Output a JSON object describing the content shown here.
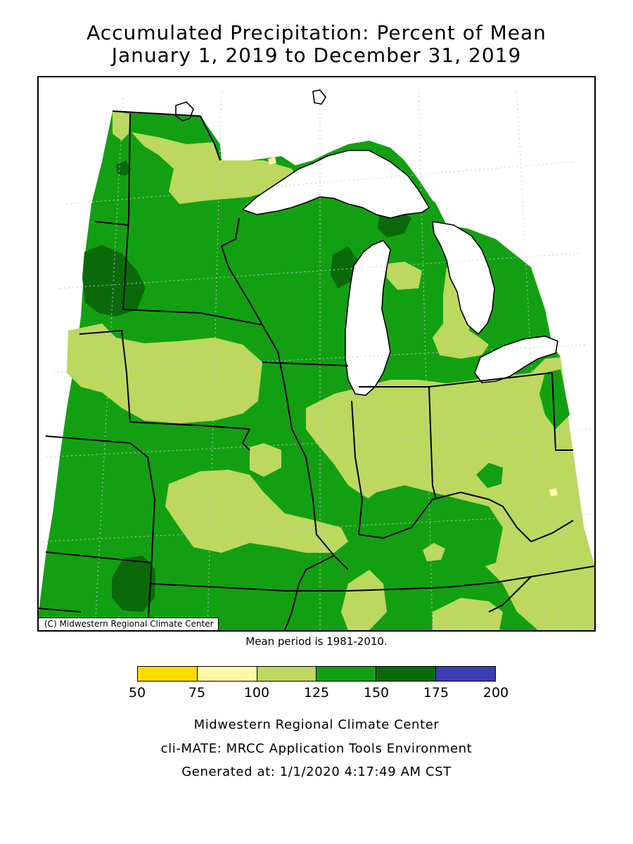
{
  "title": {
    "line1": "Accumulated Precipitation: Percent of Mean",
    "line2": "January 1, 2019 to December 31, 2019"
  },
  "map": {
    "copyright": "(C) Midwestern Regional Climate Center",
    "colors": {
      "c100_125": "#bcd85f",
      "c125_150": "#12a012",
      "c150_175": "#0a6a0a",
      "c75_100": "#fff7a6",
      "water": "#ffffff",
      "border": "#000000",
      "grid": "#c8c8c8"
    }
  },
  "mean_period": "Mean period is 1981-2010.",
  "legend": {
    "colors": [
      "#ffdc00",
      "#fff7a6",
      "#bcd85f",
      "#12a012",
      "#0a6a0a",
      "#3c3cb4"
    ],
    "labels": [
      "50",
      "75",
      "100",
      "125",
      "150",
      "175",
      "200"
    ]
  },
  "footer": {
    "line1": "Midwestern Regional Climate Center",
    "line2": "cli-MATE: MRCC Application Tools Environment",
    "line3": "Generated at: 1/1/2020 4:17:49 AM CST"
  }
}
